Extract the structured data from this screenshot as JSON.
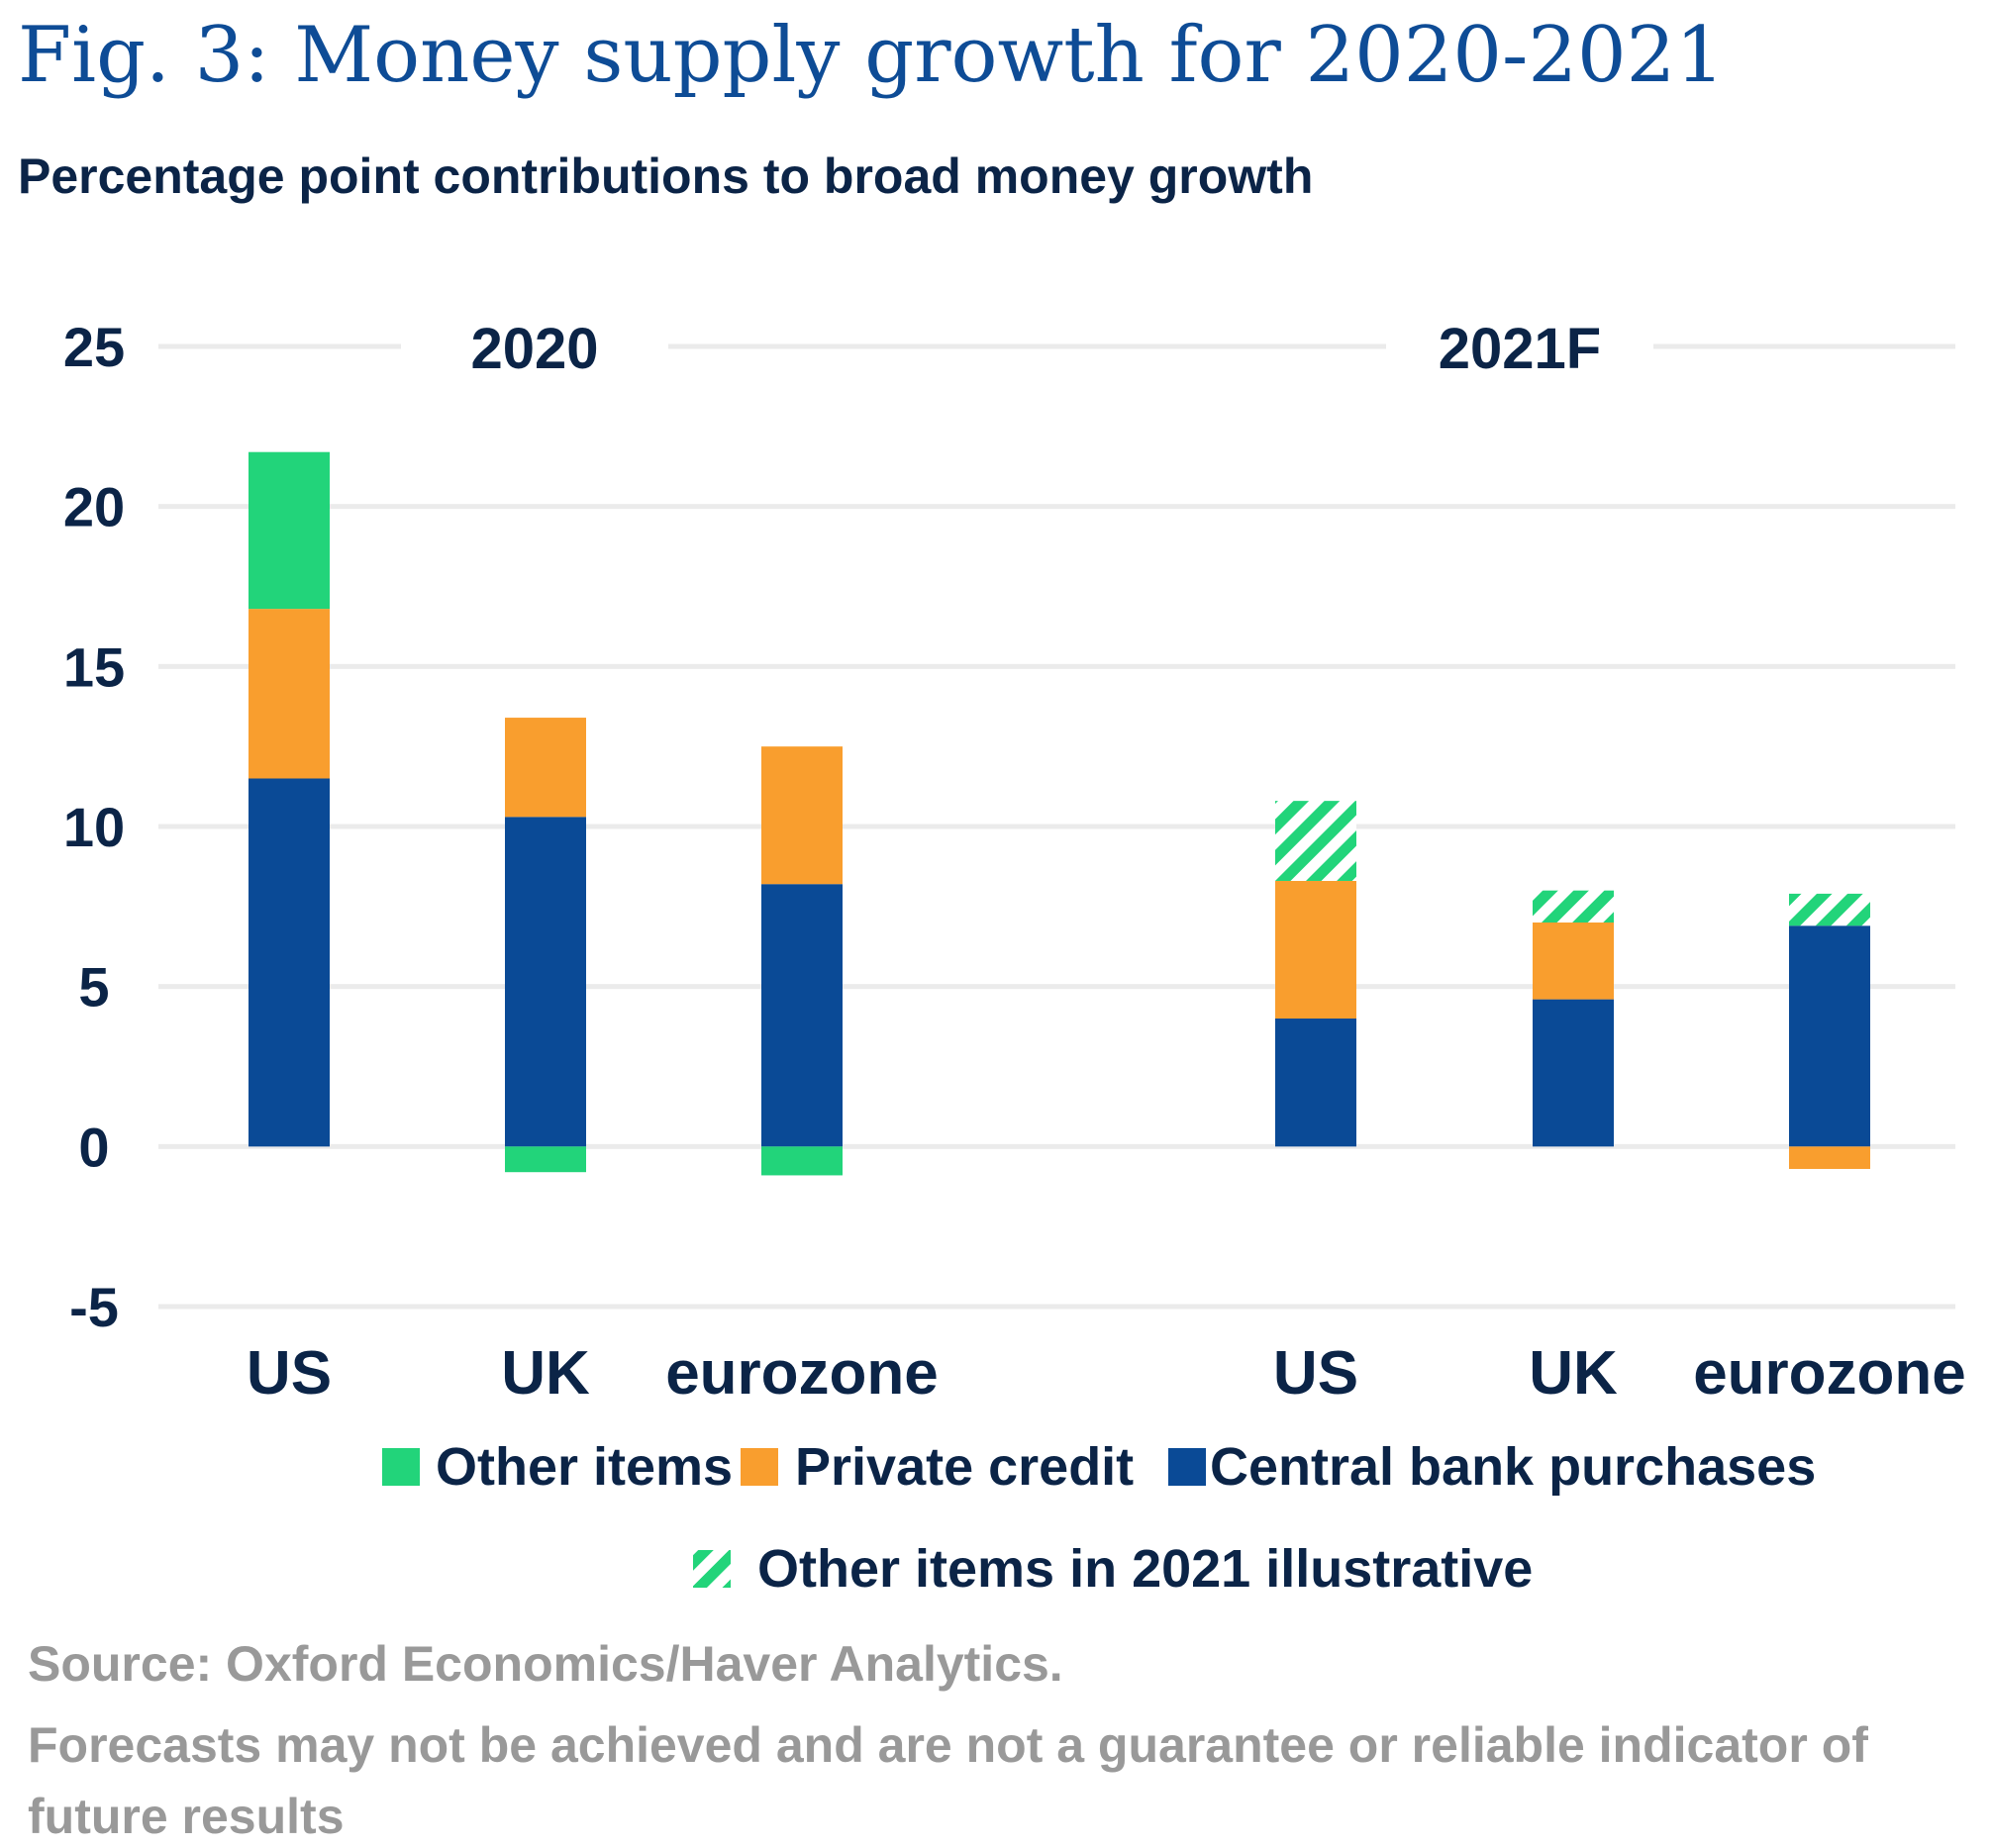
{
  "colors": {
    "other_items": "#22d47a",
    "private_credit": "#f99e2e",
    "central_bank": "#0a4a96",
    "grid": "#ebebeb",
    "title": "#0e4c96",
    "text": "#0b2447",
    "source": "#999999"
  },
  "chart_data": {
    "type": "bar",
    "stacked": true,
    "title": "Fig. 3: Money supply growth for 2020-2021",
    "subtitle": "Percentage point contributions to broad money growth",
    "ylim": [
      -5,
      25
    ],
    "yticks": [
      25,
      20,
      15,
      10,
      5,
      0,
      -5
    ],
    "grid": true,
    "panels": [
      "2020",
      "2021F"
    ],
    "categories": [
      "US",
      "UK",
      "eurozone",
      "US",
      "UK",
      "eurozone"
    ],
    "category_panel": [
      0,
      0,
      0,
      1,
      1,
      1
    ],
    "series": [
      {
        "name": "Central bank purchases",
        "key": "central_bank",
        "values": [
          11.5,
          10.3,
          8.2,
          4.0,
          4.6,
          6.9
        ]
      },
      {
        "name": "Private credit",
        "key": "private_credit",
        "values": [
          5.3,
          3.1,
          4.3,
          4.3,
          2.4,
          -0.7
        ]
      },
      {
        "name": "Other items",
        "key": "other_items",
        "values": [
          4.9,
          -0.8,
          -0.9,
          0,
          0,
          0
        ]
      },
      {
        "name": "Other items in 2021 illustrative",
        "key": "other_items_illustrative",
        "values": [
          0,
          0,
          0,
          2.5,
          1.0,
          1.0
        ]
      }
    ],
    "legend": [
      {
        "label": "Other items",
        "key": "other_items"
      },
      {
        "label": "Private credit",
        "key": "private_credit"
      },
      {
        "label": "Central bank purchases",
        "key": "central_bank"
      },
      {
        "label": "Other items in 2021 illustrative",
        "key": "other_items_illustrative"
      }
    ],
    "legend_position": "bottom"
  },
  "source_lines": [
    "Source: Oxford Economics/Haver Analytics.",
    "Forecasts may not be achieved and are not a guarantee or reliable indicator of",
    "future results"
  ]
}
